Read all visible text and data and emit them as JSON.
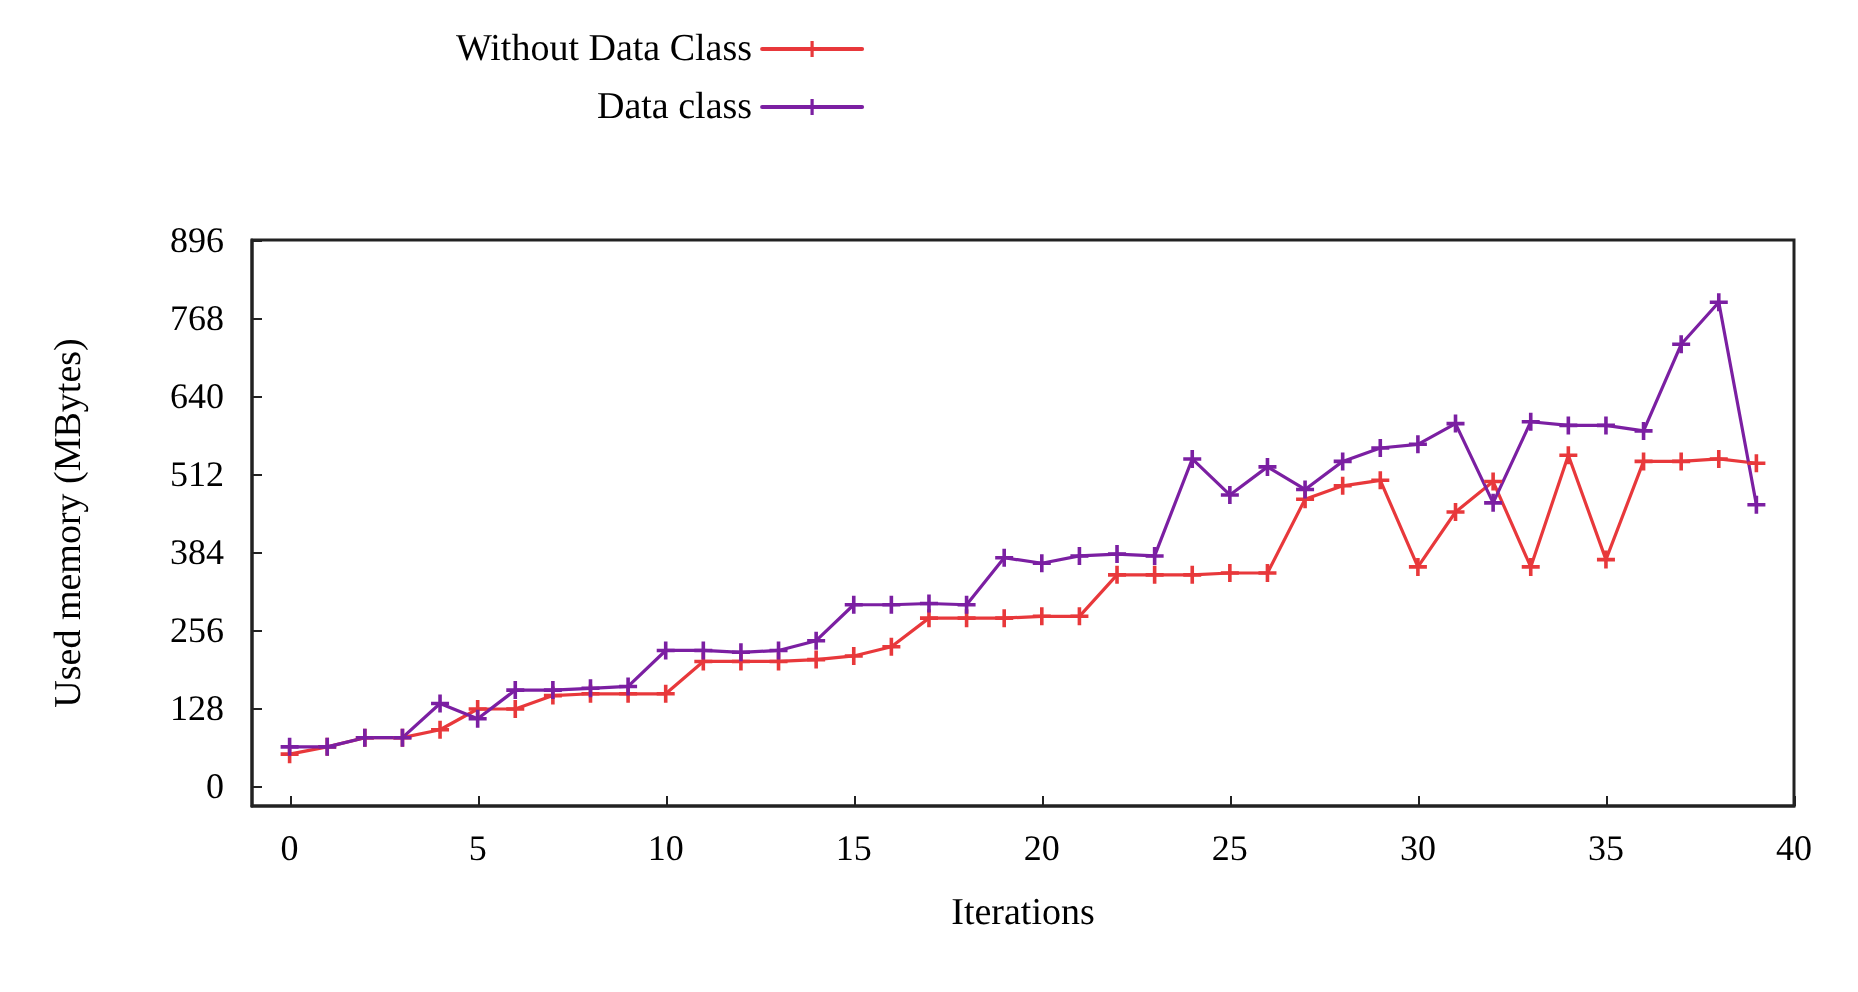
{
  "chart_data": {
    "type": "line",
    "xlabel": "Iterations",
    "ylabel": "Used memory (MBytes)",
    "xlim": [
      -1,
      40
    ],
    "xticks": [
      0,
      5,
      10,
      15,
      20,
      25,
      30,
      35,
      40
    ],
    "ylim": [
      -32,
      896
    ],
    "yticks": [
      0,
      128,
      256,
      384,
      512,
      640,
      768,
      896
    ],
    "x": [
      0,
      1,
      2,
      3,
      4,
      5,
      6,
      7,
      8,
      9,
      10,
      11,
      12,
      13,
      14,
      15,
      16,
      17,
      18,
      19,
      20,
      21,
      22,
      23,
      24,
      25,
      26,
      27,
      28,
      29,
      30,
      31,
      32,
      33,
      34,
      35,
      36,
      37,
      38,
      39
    ],
    "series": [
      {
        "name": "Without Data Class",
        "color": "#e8383b",
        "values": [
          53,
          65,
          80,
          80,
          93,
          127,
          127,
          149,
          152,
          152,
          152,
          205,
          205,
          205,
          208,
          214,
          229,
          276,
          276,
          276,
          279,
          279,
          347,
          347,
          347,
          350,
          350,
          471,
          493,
          502,
          360,
          450,
          500,
          360,
          543,
          372,
          533,
          533,
          537,
          530
        ]
      },
      {
        "name": "Data class",
        "color": "#7b1fa2",
        "values": [
          65,
          65,
          80,
          80,
          136,
          111,
          158,
          158,
          161,
          164,
          223,
          223,
          220,
          223,
          239,
          298,
          298,
          300,
          298,
          375,
          366,
          378,
          381,
          378,
          537,
          478,
          524,
          487,
          533,
          555,
          561,
          595,
          465,
          598,
          592,
          592,
          583,
          725,
          794,
          462
        ]
      }
    ],
    "legend": "top",
    "grid": false,
    "marker": "cross",
    "line_style": "solid"
  }
}
